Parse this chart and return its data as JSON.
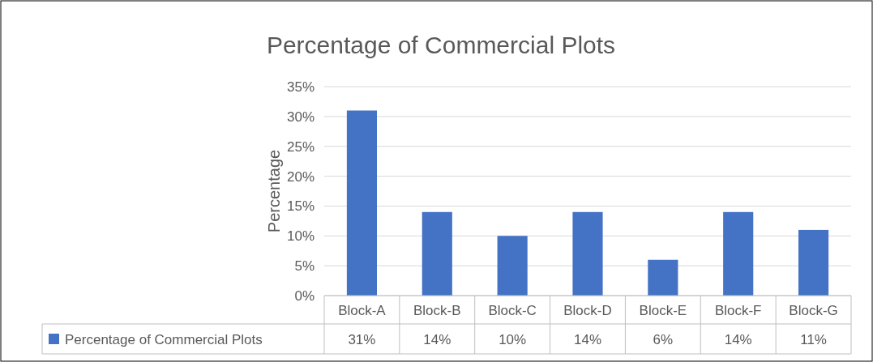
{
  "chart_data": {
    "type": "bar",
    "title": "Percentage of Commercial Plots",
    "ylabel": "Percentage",
    "categories": [
      "Block-A",
      "Block-B",
      "Block-C",
      "Block-D",
      "Block-E",
      "Block-F",
      "Block-G"
    ],
    "series": [
      {
        "name": "Percentage of Commercial Plots",
        "color": "#4472c4",
        "values": [
          31,
          14,
          10,
          14,
          6,
          14,
          11
        ],
        "value_labels": [
          "31%",
          "14%",
          "10%",
          "14%",
          "6%",
          "14%",
          "11%"
        ]
      }
    ],
    "ylim": [
      0,
      35
    ],
    "yticks": [
      {
        "value": 0,
        "label": "0%"
      },
      {
        "value": 5,
        "label": "5%"
      },
      {
        "value": 10,
        "label": "10%"
      },
      {
        "value": 15,
        "label": "15%"
      },
      {
        "value": 20,
        "label": "20%"
      },
      {
        "value": 25,
        "label": "25%"
      },
      {
        "value": 30,
        "label": "30%"
      },
      {
        "value": 35,
        "label": "35%"
      }
    ],
    "grid": "y",
    "legend": "bottom"
  }
}
